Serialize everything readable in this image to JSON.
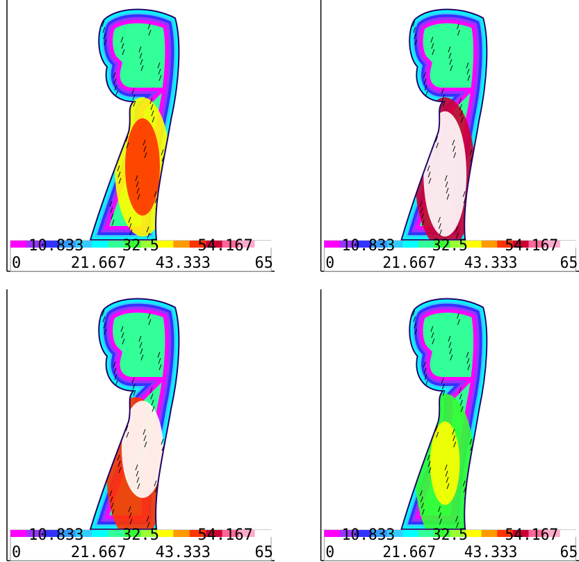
{
  "colorbar": {
    "colors": [
      "#ff00ff",
      "#9933ff",
      "#3333ff",
      "#3399ff",
      "#33ccff",
      "#00ffff",
      "#33ff99",
      "#33ff33",
      "#99ff33",
      "#ffff00",
      "#ff9900",
      "#ff3300",
      "#cc0033",
      "#ff6699",
      "#ffaacc",
      "#ffffff"
    ]
  },
  "panels": [
    {
      "colorbar": {
        "ticks": [
          0,
          10.833,
          21.667,
          32.5,
          43.333,
          54.167,
          65
        ]
      }
    },
    {
      "colorbar": {
        "ticks": [
          0,
          10.833,
          21.667,
          32.5,
          43.333,
          54.167,
          65
        ]
      }
    },
    {
      "colorbar": {
        "ticks": [
          0,
          10.833,
          21.667,
          32.5,
          43.333,
          54.167,
          65
        ]
      }
    },
    {
      "colorbar": {
        "ticks": [
          0,
          10.833,
          21.667,
          32.5,
          43.333,
          54.167,
          65
        ]
      }
    }
  ]
}
